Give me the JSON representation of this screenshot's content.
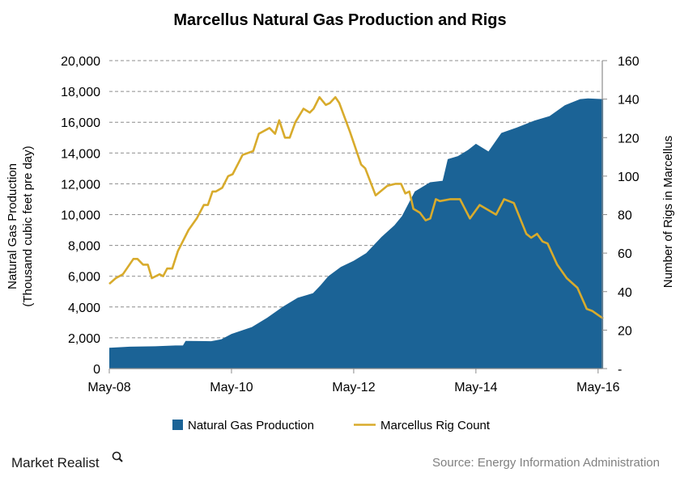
{
  "chart_data": {
    "type": "area+line",
    "title": "Marcellus Natural Gas Production and Rigs",
    "ylabel_left": [
      "Natural Gas Production",
      "(Thousand cubic feet pre day)"
    ],
    "ylabel_right": "Number of Rigs in Marcellus",
    "xlabel": "",
    "x_ticks": [
      "May-08",
      "May-10",
      "May-12",
      "May-14",
      "May-16"
    ],
    "x_tick_dates": [
      "2008-05-01",
      "2010-05-01",
      "2012-05-01",
      "2014-05-01",
      "2016-05-01"
    ],
    "y_left_ticks": [
      "0",
      "2,000",
      "4,000",
      "6,000",
      "8,000",
      "10,000",
      "12,000",
      "14,000",
      "16,000",
      "18,000",
      "20,000"
    ],
    "y_right_ticks": [
      "-",
      "20",
      "40",
      "60",
      "80",
      "100",
      "120",
      "140",
      "160"
    ],
    "ylim_left": [
      0,
      20000
    ],
    "ylim_right": [
      0,
      160
    ],
    "grid": "horizontal dashed",
    "legend_position": "bottom",
    "colors": {
      "production": "#1b6396",
      "rigs": "#d8ab2c"
    },
    "series": [
      {
        "name": "Natural Gas Production",
        "type": "area",
        "axis": "left",
        "points": [
          [
            "2008-05-01",
            1350
          ],
          [
            "2008-09-01",
            1420
          ],
          [
            "2009-02-01",
            1450
          ],
          [
            "2009-06-01",
            1500
          ],
          [
            "2009-07-15",
            1500
          ],
          [
            "2009-08-01",
            1800
          ],
          [
            "2010-01-01",
            1780
          ],
          [
            "2010-03-01",
            1900
          ],
          [
            "2010-05-01",
            2250
          ],
          [
            "2010-09-01",
            2700
          ],
          [
            "2010-12-01",
            3300
          ],
          [
            "2011-03-01",
            4000
          ],
          [
            "2011-06-01",
            4600
          ],
          [
            "2011-09-01",
            4900
          ],
          [
            "2011-10-15",
            5400
          ],
          [
            "2011-12-01",
            6000
          ],
          [
            "2012-02-15",
            6600
          ],
          [
            "2012-05-01",
            7000
          ],
          [
            "2012-07-15",
            7500
          ],
          [
            "2012-10-15",
            8550
          ],
          [
            "2013-01-01",
            9300
          ],
          [
            "2013-02-15",
            9900
          ],
          [
            "2013-05-01",
            11500
          ],
          [
            "2013-08-01",
            12100
          ],
          [
            "2013-10-15",
            12200
          ],
          [
            "2013-11-15",
            13600
          ],
          [
            "2014-01-15",
            13800
          ],
          [
            "2014-03-15",
            14200
          ],
          [
            "2014-05-01",
            14600
          ],
          [
            "2014-07-15",
            14100
          ],
          [
            "2014-10-01",
            15300
          ],
          [
            "2015-01-01",
            15650
          ],
          [
            "2015-04-15",
            16100
          ],
          [
            "2015-07-15",
            16400
          ],
          [
            "2015-10-15",
            17100
          ],
          [
            "2016-01-15",
            17500
          ],
          [
            "2016-03-01",
            17550
          ],
          [
            "2016-06-01",
            17500
          ]
        ]
      },
      {
        "name": "Marcellus Rig Count",
        "type": "line",
        "axis": "right",
        "points": [
          [
            "2008-05-01",
            44
          ],
          [
            "2008-06-09",
            47
          ],
          [
            "2008-07-21",
            49
          ],
          [
            "2008-09-23",
            57
          ],
          [
            "2008-10-17",
            57
          ],
          [
            "2008-11-20",
            54
          ],
          [
            "2008-12-18",
            54
          ],
          [
            "2009-01-12",
            47
          ],
          [
            "2009-02-27",
            49
          ],
          [
            "2009-03-18",
            48
          ],
          [
            "2009-04-12",
            52
          ],
          [
            "2009-05-12",
            52
          ],
          [
            "2009-06-15",
            61
          ],
          [
            "2009-08-18",
            72
          ],
          [
            "2009-10-06",
            78
          ],
          [
            "2009-11-18",
            85
          ],
          [
            "2009-12-12",
            85
          ],
          [
            "2010-01-09",
            92
          ],
          [
            "2010-01-29",
            92
          ],
          [
            "2010-03-07",
            94
          ],
          [
            "2010-04-11",
            100
          ],
          [
            "2010-05-08",
            101
          ],
          [
            "2010-06-13",
            107
          ],
          [
            "2010-07-06",
            111
          ],
          [
            "2010-09-09",
            113
          ],
          [
            "2010-10-12",
            122
          ],
          [
            "2010-12-15",
            125
          ],
          [
            "2011-01-18",
            122
          ],
          [
            "2011-02-12",
            129
          ],
          [
            "2011-03-16",
            120
          ],
          [
            "2011-04-14",
            120
          ],
          [
            "2011-05-17",
            128
          ],
          [
            "2011-07-05",
            135
          ],
          [
            "2011-08-12",
            133
          ],
          [
            "2011-09-05",
            135
          ],
          [
            "2011-10-09",
            141
          ],
          [
            "2011-11-17",
            137
          ],
          [
            "2011-12-11",
            138
          ],
          [
            "2012-01-13",
            141
          ],
          [
            "2012-02-06",
            138
          ],
          [
            "2012-04-09",
            123
          ],
          [
            "2012-06-15",
            106
          ],
          [
            "2012-07-09",
            104
          ],
          [
            "2012-09-10",
            90
          ],
          [
            "2012-11-20",
            95
          ],
          [
            "2013-01-08",
            96
          ],
          [
            "2013-02-10",
            96
          ],
          [
            "2013-03-05",
            91
          ],
          [
            "2013-03-29",
            92
          ],
          [
            "2013-04-23",
            83
          ],
          [
            "2013-06-01",
            81
          ],
          [
            "2013-07-05",
            77
          ],
          [
            "2013-08-02",
            78
          ],
          [
            "2013-09-05",
            88
          ],
          [
            "2013-09-29",
            87
          ],
          [
            "2013-12-01",
            88
          ],
          [
            "2014-01-27",
            88
          ],
          [
            "2014-03-26",
            78
          ],
          [
            "2014-05-23",
            85
          ],
          [
            "2014-08-30",
            80
          ],
          [
            "2014-10-17",
            88
          ],
          [
            "2014-12-15",
            86
          ],
          [
            "2015-02-28",
            70
          ],
          [
            "2015-03-27",
            68
          ],
          [
            "2015-05-01",
            70
          ],
          [
            "2015-06-04",
            66
          ],
          [
            "2015-07-03",
            65
          ],
          [
            "2015-08-30",
            54
          ],
          [
            "2015-10-26",
            47
          ],
          [
            "2015-12-29",
            42
          ],
          [
            "2016-02-24",
            31
          ],
          [
            "2016-03-26",
            30
          ],
          [
            "2016-06-01",
            26
          ]
        ]
      }
    ]
  },
  "legend": {
    "production": "Natural Gas Production",
    "rigs": "Marcellus Rig Count"
  },
  "footer": {
    "logo": "Market Realist",
    "source": "Source:  Energy Information  Administration"
  }
}
